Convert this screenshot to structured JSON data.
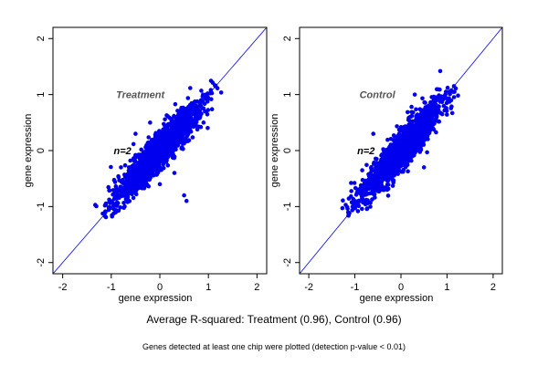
{
  "chart_data": [
    {
      "type": "scatter",
      "panel": "left",
      "xlabel": "gene expression",
      "ylabel": "gene expression",
      "xlim": [
        -2.2,
        2.2
      ],
      "ylim": [
        -2.2,
        2.2
      ],
      "xticks": [
        -2,
        -1,
        0,
        1,
        2
      ],
      "yticks": [
        -2,
        -1,
        0,
        1,
        2
      ],
      "reference_line": "y = x",
      "point_color": "#0000ee",
      "line_color": "#0000ee",
      "annotations": [
        {
          "text": "Treatment",
          "x": -0.9,
          "y": 1.0
        },
        {
          "text": "n=2",
          "x": -0.95,
          "y": 0.0
        }
      ],
      "points": [
        [
          -1.12,
          -1.1
        ],
        [
          -1.05,
          -1.02
        ],
        [
          -0.95,
          -0.98
        ],
        [
          -0.85,
          -0.8
        ],
        [
          -0.75,
          -0.72
        ],
        [
          -0.65,
          -0.6
        ],
        [
          -0.55,
          -0.5
        ],
        [
          -0.45,
          -0.4
        ],
        [
          -0.35,
          -0.3
        ],
        [
          -0.25,
          -0.2
        ],
        [
          -0.15,
          -0.1
        ],
        [
          -0.05,
          0.0
        ],
        [
          0.05,
          0.1
        ],
        [
          0.15,
          0.2
        ],
        [
          0.25,
          0.3
        ],
        [
          0.35,
          0.4
        ],
        [
          0.45,
          0.5
        ],
        [
          0.55,
          0.6
        ],
        [
          0.65,
          0.7
        ],
        [
          0.75,
          0.8
        ],
        [
          0.85,
          0.9
        ],
        [
          0.95,
          1.0
        ],
        [
          1.05,
          1.08
        ],
        [
          1.15,
          1.15
        ],
        [
          0.5,
          -0.8
        ],
        [
          0.55,
          -0.9
        ],
        [
          0.0,
          -0.6
        ],
        [
          -0.5,
          0.3
        ],
        [
          -0.8,
          -0.3
        ],
        [
          0.3,
          -0.4
        ],
        [
          -0.2,
          0.5
        ],
        [
          0.9,
          0.5
        ]
      ]
    },
    {
      "type": "scatter",
      "panel": "right",
      "xlabel": "gene expression",
      "ylabel": "gene expression",
      "xlim": [
        -2.2,
        2.2
      ],
      "ylim": [
        -2.2,
        2.2
      ],
      "xticks": [
        -2,
        -1,
        0,
        1,
        2
      ],
      "yticks": [
        -2,
        -1,
        0,
        1,
        2
      ],
      "reference_line": "y = x",
      "point_color": "#0000ee",
      "line_color": "#0000ee",
      "annotations": [
        {
          "text": "Control",
          "x": -0.9,
          "y": 1.0
        },
        {
          "text": "n=2",
          "x": -0.95,
          "y": 0.0
        }
      ],
      "points": [
        [
          -1.12,
          -1.12
        ],
        [
          -1.05,
          -1.0
        ],
        [
          -0.95,
          -0.92
        ],
        [
          -0.85,
          -0.82
        ],
        [
          -0.75,
          -0.7
        ],
        [
          -0.65,
          -0.62
        ],
        [
          -0.55,
          -0.5
        ],
        [
          -0.45,
          -0.42
        ],
        [
          -0.35,
          -0.3
        ],
        [
          -0.25,
          -0.22
        ],
        [
          -0.15,
          -0.1
        ],
        [
          -0.05,
          0.0
        ],
        [
          0.05,
          0.08
        ],
        [
          0.15,
          0.2
        ],
        [
          0.25,
          0.28
        ],
        [
          0.35,
          0.4
        ],
        [
          0.45,
          0.48
        ],
        [
          0.55,
          0.6
        ],
        [
          0.65,
          0.68
        ],
        [
          0.75,
          0.8
        ],
        [
          0.85,
          0.88
        ],
        [
          0.95,
          0.98
        ],
        [
          1.05,
          1.05
        ],
        [
          1.15,
          1.15
        ],
        [
          0.3,
          1.0
        ],
        [
          -0.6,
          0.3
        ],
        [
          0.5,
          -0.3
        ],
        [
          -0.3,
          -0.7
        ],
        [
          0.2,
          0.6
        ]
      ]
    }
  ],
  "captions": {
    "main": "Average R-squared: Treatment (0.96), Control (0.96)",
    "footnote": "Genes detected at least one chip were plotted (detection p-value < 0.01)"
  }
}
